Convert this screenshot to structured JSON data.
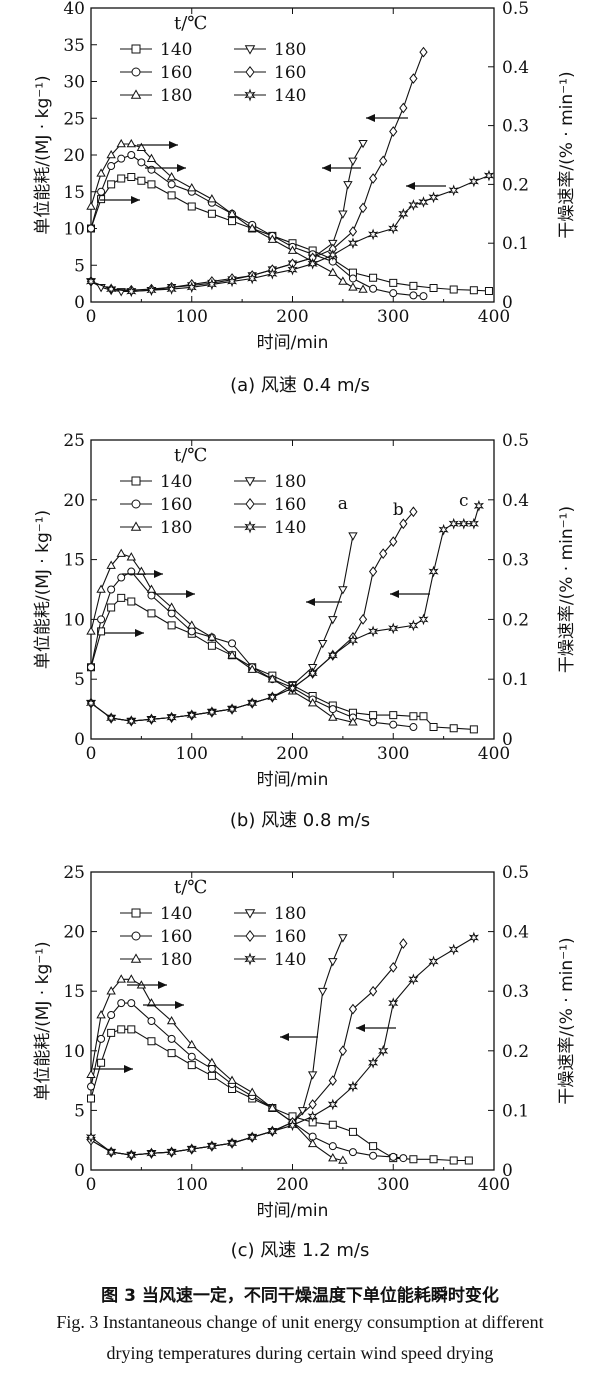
{
  "figure": {
    "caption_zh": "图 3   当风速一定，不同干燥温度下单位能耗瞬时变化",
    "caption_en_1": "Fig. 3   Instantaneous change of unit energy consumption at different",
    "caption_en_2": "drying temperatures during certain wind speed drying"
  },
  "chart_data": [
    {
      "type": "line",
      "subcaption": "(a) 风速 0.4 m/s",
      "xlabel": "时间/min",
      "ylabel_left": "单位能耗/(MJ · kg⁻¹)",
      "ylabel_right": "干燥速率/(% · min⁻¹)",
      "xlim": [
        0,
        400
      ],
      "xticks": [
        0,
        100,
        200,
        300,
        400
      ],
      "ylim_left": [
        0,
        40
      ],
      "yticks_left": [
        0,
        5,
        10,
        15,
        20,
        25,
        30,
        35,
        40
      ],
      "ylim_right": [
        0,
        0.5
      ],
      "yticks_right": [
        "0",
        "0.1",
        "0.2",
        "0.3",
        "0.4",
        "0.5"
      ],
      "legend_header": "t/℃",
      "series": [
        {
          "name": "140",
          "axis": "left",
          "marker": "square",
          "x": [
            0,
            10,
            20,
            30,
            40,
            50,
            60,
            80,
            100,
            120,
            140,
            160,
            180,
            200,
            220,
            240,
            260,
            280,
            300,
            320,
            340,
            360,
            380,
            395
          ],
          "y": [
            10,
            14,
            16,
            16.8,
            17,
            16.5,
            16,
            14.5,
            13,
            12,
            11,
            10,
            9,
            8,
            7,
            5.8,
            4,
            3.3,
            2.6,
            2.2,
            1.9,
            1.7,
            1.6,
            1.5
          ]
        },
        {
          "name": "160",
          "axis": "left",
          "marker": "circle",
          "x": [
            0,
            10,
            20,
            30,
            40,
            50,
            60,
            80,
            100,
            120,
            140,
            160,
            180,
            200,
            220,
            240,
            260,
            280,
            300,
            320,
            330
          ],
          "y": [
            10,
            15,
            18.5,
            19.5,
            20,
            19,
            18,
            16,
            15,
            13.5,
            12,
            10.5,
            9,
            7.5,
            6.5,
            5.5,
            3.2,
            1.8,
            1.2,
            0.9,
            0.8
          ]
        },
        {
          "name": "180",
          "axis": "left",
          "marker": "triangle-up",
          "x": [
            0,
            10,
            20,
            30,
            40,
            50,
            60,
            80,
            100,
            120,
            140,
            160,
            180,
            200,
            220,
            240,
            250,
            260,
            270
          ],
          "y": [
            13,
            17.5,
            20,
            21.5,
            21.5,
            21,
            19.5,
            17,
            15.5,
            14,
            12,
            10,
            8.5,
            7,
            5.5,
            4,
            2.8,
            2,
            1.7
          ]
        },
        {
          "name": "180",
          "axis": "right",
          "marker": "triangle-down",
          "x": [
            0,
            10,
            20,
            30,
            40,
            60,
            80,
            100,
            120,
            140,
            160,
            180,
            200,
            220,
            240,
            250,
            255,
            260,
            270
          ],
          "y": [
            0.035,
            0.025,
            0.02,
            0.018,
            0.018,
            0.02,
            0.025,
            0.028,
            0.032,
            0.038,
            0.045,
            0.055,
            0.065,
            0.075,
            0.1,
            0.15,
            0.2,
            0.24,
            0.27
          ]
        },
        {
          "name": "160",
          "axis": "right",
          "marker": "diamond",
          "x": [
            0,
            20,
            40,
            60,
            80,
            100,
            120,
            140,
            160,
            180,
            200,
            220,
            240,
            260,
            270,
            280,
            290,
            300,
            310,
            320,
            330
          ],
          "y": [
            0.035,
            0.022,
            0.02,
            0.022,
            0.025,
            0.03,
            0.035,
            0.04,
            0.045,
            0.055,
            0.065,
            0.075,
            0.09,
            0.12,
            0.16,
            0.21,
            0.24,
            0.29,
            0.33,
            0.38,
            0.425
          ]
        },
        {
          "name": "140",
          "axis": "right",
          "marker": "star",
          "x": [
            0,
            20,
            40,
            60,
            80,
            100,
            120,
            140,
            160,
            180,
            200,
            220,
            240,
            260,
            280,
            300,
            310,
            320,
            330,
            340,
            360,
            380,
            395
          ],
          "y": [
            0.035,
            0.022,
            0.018,
            0.02,
            0.022,
            0.025,
            0.03,
            0.035,
            0.04,
            0.048,
            0.055,
            0.065,
            0.08,
            0.1,
            0.115,
            0.125,
            0.15,
            0.165,
            0.17,
            0.178,
            0.19,
            0.205,
            0.215
          ]
        }
      ],
      "annotations": []
    },
    {
      "type": "line",
      "subcaption": "(b) 风速 0.8 m/s",
      "xlabel": "时间/min",
      "ylabel_left": "单位能耗/(MJ · kg⁻¹)",
      "ylabel_right": "干燥速率/(% · min⁻¹)",
      "xlim": [
        0,
        400
      ],
      "xticks": [
        0,
        100,
        200,
        300,
        400
      ],
      "ylim_left": [
        0,
        25
      ],
      "yticks_left": [
        0,
        5,
        10,
        15,
        20,
        25
      ],
      "ylim_right": [
        0,
        0.5
      ],
      "yticks_right": [
        "0",
        "0.1",
        "0.2",
        "0.3",
        "0.4",
        "0.5"
      ],
      "legend_header": "t/℃",
      "series": [
        {
          "name": "140",
          "axis": "left",
          "marker": "square",
          "x": [
            0,
            10,
            20,
            30,
            40,
            60,
            80,
            100,
            120,
            140,
            160,
            180,
            200,
            220,
            240,
            260,
            280,
            300,
            320,
            330,
            340,
            360,
            380
          ],
          "y": [
            6,
            9,
            11,
            11.8,
            11.5,
            10.5,
            9.5,
            8.8,
            7.8,
            7,
            6,
            5.3,
            4.5,
            3.6,
            2.8,
            2.2,
            2,
            2,
            1.9,
            1.9,
            1,
            0.9,
            0.8
          ]
        },
        {
          "name": "160",
          "axis": "left",
          "marker": "circle",
          "x": [
            0,
            10,
            20,
            30,
            40,
            60,
            80,
            100,
            120,
            140,
            160,
            180,
            200,
            220,
            240,
            260,
            280,
            300,
            320
          ],
          "y": [
            6,
            10,
            12.5,
            13.5,
            14,
            12,
            10.5,
            9,
            8.5,
            8,
            6,
            5,
            4.3,
            3.3,
            2.5,
            1.8,
            1.4,
            1.2,
            1
          ]
        },
        {
          "name": "180",
          "axis": "left",
          "marker": "triangle-up",
          "x": [
            0,
            10,
            20,
            30,
            40,
            50,
            60,
            80,
            100,
            120,
            140,
            160,
            180,
            200,
            220,
            240,
            260
          ],
          "y": [
            9,
            12.5,
            14.5,
            15.5,
            15.2,
            14,
            12.5,
            11,
            9.5,
            8.5,
            7,
            5.8,
            5,
            4,
            3,
            1.8,
            1.4
          ]
        },
        {
          "name": "180",
          "axis": "right",
          "marker": "triangle-down",
          "x": [
            0,
            20,
            40,
            60,
            80,
            100,
            120,
            140,
            160,
            180,
            200,
            220,
            230,
            240,
            250,
            260
          ],
          "y": [
            0.06,
            0.035,
            0.03,
            0.033,
            0.036,
            0.04,
            0.045,
            0.05,
            0.06,
            0.07,
            0.09,
            0.12,
            0.16,
            0.2,
            0.25,
            0.34
          ]
        },
        {
          "name": "160",
          "axis": "right",
          "marker": "diamond",
          "x": [
            0,
            20,
            40,
            60,
            80,
            100,
            120,
            140,
            160,
            180,
            200,
            220,
            240,
            260,
            270,
            280,
            290,
            300,
            310,
            320
          ],
          "y": [
            0.06,
            0.035,
            0.03,
            0.033,
            0.036,
            0.04,
            0.045,
            0.05,
            0.06,
            0.07,
            0.085,
            0.11,
            0.14,
            0.17,
            0.2,
            0.28,
            0.31,
            0.33,
            0.36,
            0.38
          ]
        },
        {
          "name": "140",
          "axis": "right",
          "marker": "star",
          "x": [
            0,
            20,
            40,
            60,
            80,
            100,
            120,
            140,
            160,
            180,
            200,
            220,
            240,
            260,
            280,
            300,
            320,
            330,
            340,
            350,
            360,
            370,
            380,
            385
          ],
          "y": [
            0.06,
            0.035,
            0.03,
            0.033,
            0.036,
            0.04,
            0.045,
            0.05,
            0.06,
            0.07,
            0.085,
            0.11,
            0.14,
            0.165,
            0.18,
            0.185,
            0.19,
            0.2,
            0.28,
            0.35,
            0.36,
            0.36,
            0.36,
            0.39
          ]
        }
      ],
      "annotations": [
        {
          "text": "a",
          "x": 250,
          "y_right": 0.385
        },
        {
          "text": "b",
          "x": 305,
          "y_right": 0.375
        },
        {
          "text": "c",
          "x": 370,
          "y_right": 0.39
        }
      ]
    },
    {
      "type": "line",
      "subcaption": "(c) 风速 1.2 m/s",
      "xlabel": "时间/min",
      "ylabel_left": "单位能耗/(MJ · kg⁻¹)",
      "ylabel_right": "干燥速率/(% · min⁻¹)",
      "xlim": [
        0,
        400
      ],
      "xticks": [
        0,
        100,
        200,
        300,
        400
      ],
      "ylim_left": [
        0,
        25
      ],
      "yticks_left": [
        0,
        5,
        10,
        15,
        20,
        25
      ],
      "ylim_right": [
        0,
        0.5
      ],
      "yticks_right": [
        "0",
        "0.1",
        "0.2",
        "0.3",
        "0.4",
        "0.5"
      ],
      "legend_header": "t/℃",
      "series": [
        {
          "name": "140",
          "axis": "left",
          "marker": "square",
          "x": [
            0,
            10,
            20,
            30,
            40,
            60,
            80,
            100,
            120,
            140,
            160,
            180,
            200,
            220,
            240,
            260,
            280,
            300,
            320,
            340,
            360,
            375
          ],
          "y": [
            6,
            9,
            11.5,
            11.8,
            11.8,
            10.8,
            9.8,
            8.8,
            7.9,
            6.8,
            6,
            5.2,
            4.5,
            4,
            3.8,
            3.2,
            2,
            1,
            0.9,
            0.9,
            0.8,
            0.8
          ]
        },
        {
          "name": "160",
          "axis": "left",
          "marker": "circle",
          "x": [
            0,
            10,
            20,
            30,
            40,
            60,
            80,
            100,
            120,
            140,
            160,
            180,
            200,
            220,
            240,
            260,
            280,
            300,
            310
          ],
          "y": [
            7,
            11,
            13,
            14,
            14,
            12.5,
            11,
            9.5,
            8.5,
            7.2,
            6.2,
            5.2,
            4,
            2.8,
            2,
            1.5,
            1.2,
            1.1,
            1
          ]
        },
        {
          "name": "180",
          "axis": "left",
          "marker": "triangle-up",
          "x": [
            0,
            10,
            20,
            30,
            40,
            50,
            60,
            80,
            100,
            120,
            140,
            160,
            180,
            200,
            220,
            240,
            250
          ],
          "y": [
            8,
            13,
            15,
            16,
            16,
            15.5,
            14,
            12.5,
            10.5,
            9,
            7.5,
            6.5,
            5.2,
            4,
            2.2,
            1,
            0.8
          ]
        },
        {
          "name": "180",
          "axis": "right",
          "marker": "triangle-down",
          "x": [
            0,
            20,
            40,
            60,
            80,
            100,
            120,
            140,
            160,
            180,
            200,
            210,
            220,
            230,
            240,
            250
          ],
          "y": [
            0.05,
            0.03,
            0.025,
            0.028,
            0.03,
            0.035,
            0.04,
            0.045,
            0.055,
            0.065,
            0.08,
            0.1,
            0.16,
            0.3,
            0.35,
            0.39
          ]
        },
        {
          "name": "160",
          "axis": "right",
          "marker": "diamond",
          "x": [
            0,
            20,
            40,
            60,
            80,
            100,
            120,
            140,
            160,
            180,
            200,
            220,
            240,
            250,
            260,
            280,
            300,
            310
          ],
          "y": [
            0.05,
            0.03,
            0.025,
            0.028,
            0.03,
            0.035,
            0.04,
            0.045,
            0.055,
            0.065,
            0.08,
            0.11,
            0.15,
            0.2,
            0.27,
            0.3,
            0.34,
            0.38
          ]
        },
        {
          "name": "140",
          "axis": "right",
          "marker": "star",
          "x": [
            0,
            20,
            40,
            60,
            80,
            100,
            120,
            140,
            160,
            180,
            200,
            220,
            240,
            260,
            280,
            290,
            300,
            320,
            340,
            360,
            380
          ],
          "y": [
            0.055,
            0.03,
            0.025,
            0.028,
            0.03,
            0.035,
            0.04,
            0.045,
            0.055,
            0.065,
            0.075,
            0.09,
            0.11,
            0.14,
            0.18,
            0.2,
            0.28,
            0.32,
            0.35,
            0.37,
            0.39
          ]
        }
      ],
      "annotations": []
    }
  ]
}
